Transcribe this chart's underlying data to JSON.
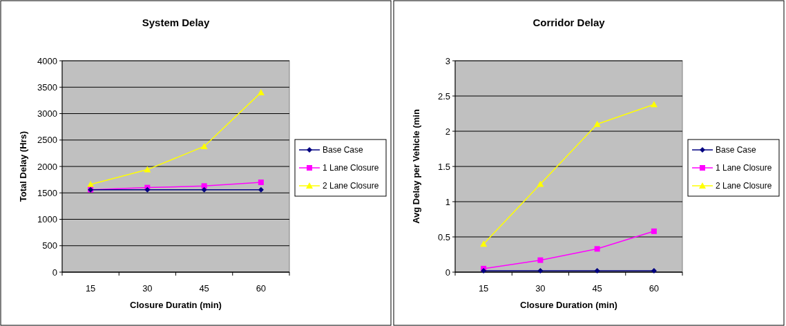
{
  "chart_data": [
    {
      "type": "line",
      "title": "System Delay",
      "xlabel": "Closure Duratin (min)",
      "ylabel": "Total Delay (Hrs)",
      "categories": [
        "15",
        "30",
        "45",
        "60"
      ],
      "ylim": [
        0,
        4000
      ],
      "yticks": [
        0,
        500,
        1000,
        1500,
        2000,
        2500,
        3000,
        3500,
        4000
      ],
      "grid": "y",
      "legend": "right",
      "series": [
        {
          "name": "Base Case",
          "color": "#000080",
          "marker": "diamond",
          "values": [
            1560,
            1560,
            1560,
            1560
          ]
        },
        {
          "name": "1 Lane Closure",
          "color": "#ff00ff",
          "marker": "square",
          "values": [
            1560,
            1600,
            1630,
            1700
          ]
        },
        {
          "name": "2 Lane Closure",
          "color": "#ffff00",
          "marker": "triangle",
          "values": [
            1660,
            1940,
            2380,
            3400
          ]
        }
      ]
    },
    {
      "type": "line",
      "title": "Corridor Delay",
      "xlabel": "Closure Duration (min)",
      "ylabel": "Avg Delay per Vehicle (min",
      "categories": [
        "15",
        "30",
        "45",
        "60"
      ],
      "ylim": [
        0,
        3
      ],
      "yticks": [
        0,
        0.5,
        1,
        1.5,
        2,
        2.5,
        3
      ],
      "grid": "y",
      "legend": "right",
      "series": [
        {
          "name": "Base Case",
          "color": "#000080",
          "marker": "diamond",
          "values": [
            0.02,
            0.02,
            0.02,
            0.02
          ]
        },
        {
          "name": "1 Lane Closure",
          "color": "#ff00ff",
          "marker": "square",
          "values": [
            0.05,
            0.17,
            0.33,
            0.58
          ]
        },
        {
          "name": "2 Lane Closure",
          "color": "#ffff00",
          "marker": "triangle",
          "values": [
            0.4,
            1.25,
            2.1,
            2.38
          ]
        }
      ]
    }
  ]
}
